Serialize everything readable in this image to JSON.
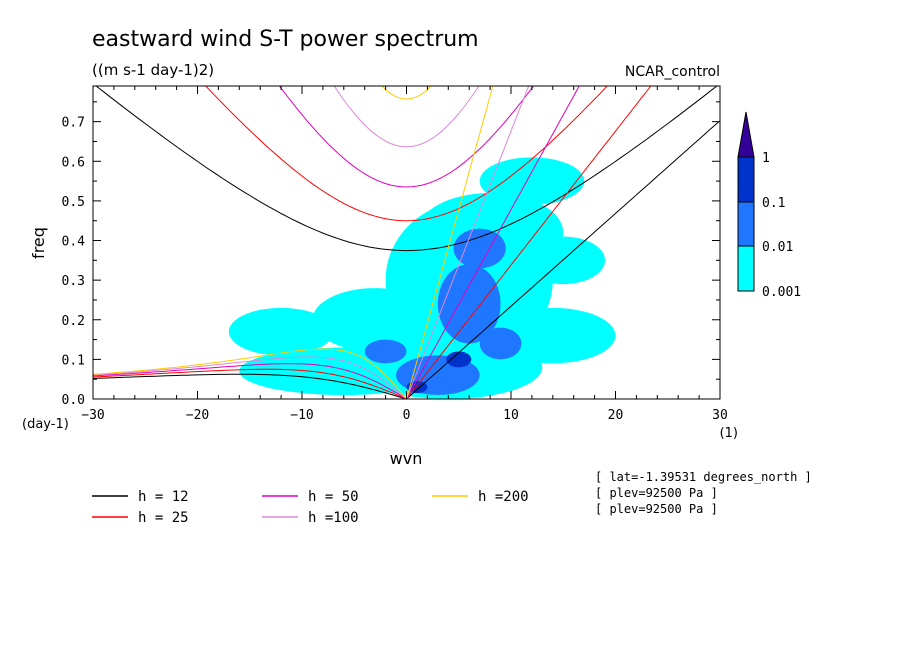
{
  "chart_data": {
    "type": "heatmap",
    "title": "eastward wind S-T power spectrum",
    "units": "((m s-1 day-1)2)",
    "run_label": "NCAR_control",
    "xlabel": "wvn",
    "ylabel": "freq",
    "x_unit": "(1)",
    "y_unit": "(day-1)",
    "xlim": [
      -30,
      30
    ],
    "ylim": [
      0,
      0.79
    ],
    "x_ticks": [
      "-30",
      "-20",
      "-10",
      "0",
      "10",
      "20",
      "30"
    ],
    "y_ticks": [
      "0.0",
      "0.1",
      "0.2",
      "0.3",
      "0.4",
      "0.5",
      "0.6",
      "0.7"
    ],
    "colorbar": {
      "levels": [
        "0.001",
        "0.01",
        "0.1",
        "1"
      ],
      "colors": [
        "#00ffff",
        "#1f77ff",
        "#0033cc",
        "#330099"
      ]
    },
    "dispersion_curves": [
      {
        "label": "h = 12",
        "h": 12,
        "color": "#000000"
      },
      {
        "label": "h = 25",
        "h": 25,
        "color": "#ff0000"
      },
      {
        "label": "h = 50",
        "h": 50,
        "color": "#e000c0"
      },
      {
        "label": "h =100",
        "h": 100,
        "color": "#dd88dd"
      },
      {
        "label": "h =200",
        "h": 200,
        "color": "#ffcc00"
      }
    ],
    "annotations": [
      "[ lat=-1.39531 degrees_north ]",
      "[ plev=92500 Pa ]",
      "[ plev=92500 Pa ]"
    ],
    "spectrum_blobs": [
      {
        "k": 4,
        "f": 0.08,
        "level": 0.001,
        "rk": 9,
        "rf": 0.08
      },
      {
        "k": 6,
        "f": 0.3,
        "level": 0.001,
        "rk": 8,
        "rf": 0.2
      },
      {
        "k": 8,
        "f": 0.42,
        "level": 0.001,
        "rk": 7,
        "rf": 0.1
      },
      {
        "k": -6,
        "f": 0.07,
        "level": 0.001,
        "rk": 10,
        "rf": 0.06
      },
      {
        "k": -3,
        "f": 0.2,
        "level": 0.001,
        "rk": 6,
        "rf": 0.08
      },
      {
        "k": 14,
        "f": 0.16,
        "level": 0.001,
        "rk": 6,
        "rf": 0.07
      },
      {
        "k": 15,
        "f": 0.35,
        "level": 0.001,
        "rk": 4,
        "rf": 0.06
      },
      {
        "k": 12,
        "f": 0.55,
        "level": 0.001,
        "rk": 5,
        "rf": 0.06
      },
      {
        "k": -12,
        "f": 0.17,
        "level": 0.001,
        "rk": 5,
        "rf": 0.06
      },
      {
        "k": 3,
        "f": 0.06,
        "level": 0.01,
        "rk": 4,
        "rf": 0.05
      },
      {
        "k": 6,
        "f": 0.24,
        "level": 0.01,
        "rk": 3,
        "rf": 0.1
      },
      {
        "k": 7,
        "f": 0.38,
        "level": 0.01,
        "rk": 2.5,
        "rf": 0.05
      },
      {
        "k": -2,
        "f": 0.12,
        "level": 0.01,
        "rk": 2,
        "rf": 0.03
      },
      {
        "k": 9,
        "f": 0.14,
        "level": 0.01,
        "rk": 2,
        "rf": 0.04
      },
      {
        "k": 5,
        "f": 0.1,
        "level": 0.1,
        "rk": 1.2,
        "rf": 0.02
      },
      {
        "k": 1,
        "f": 0.03,
        "level": 0.1,
        "rk": 1,
        "rf": 0.015
      }
    ]
  }
}
